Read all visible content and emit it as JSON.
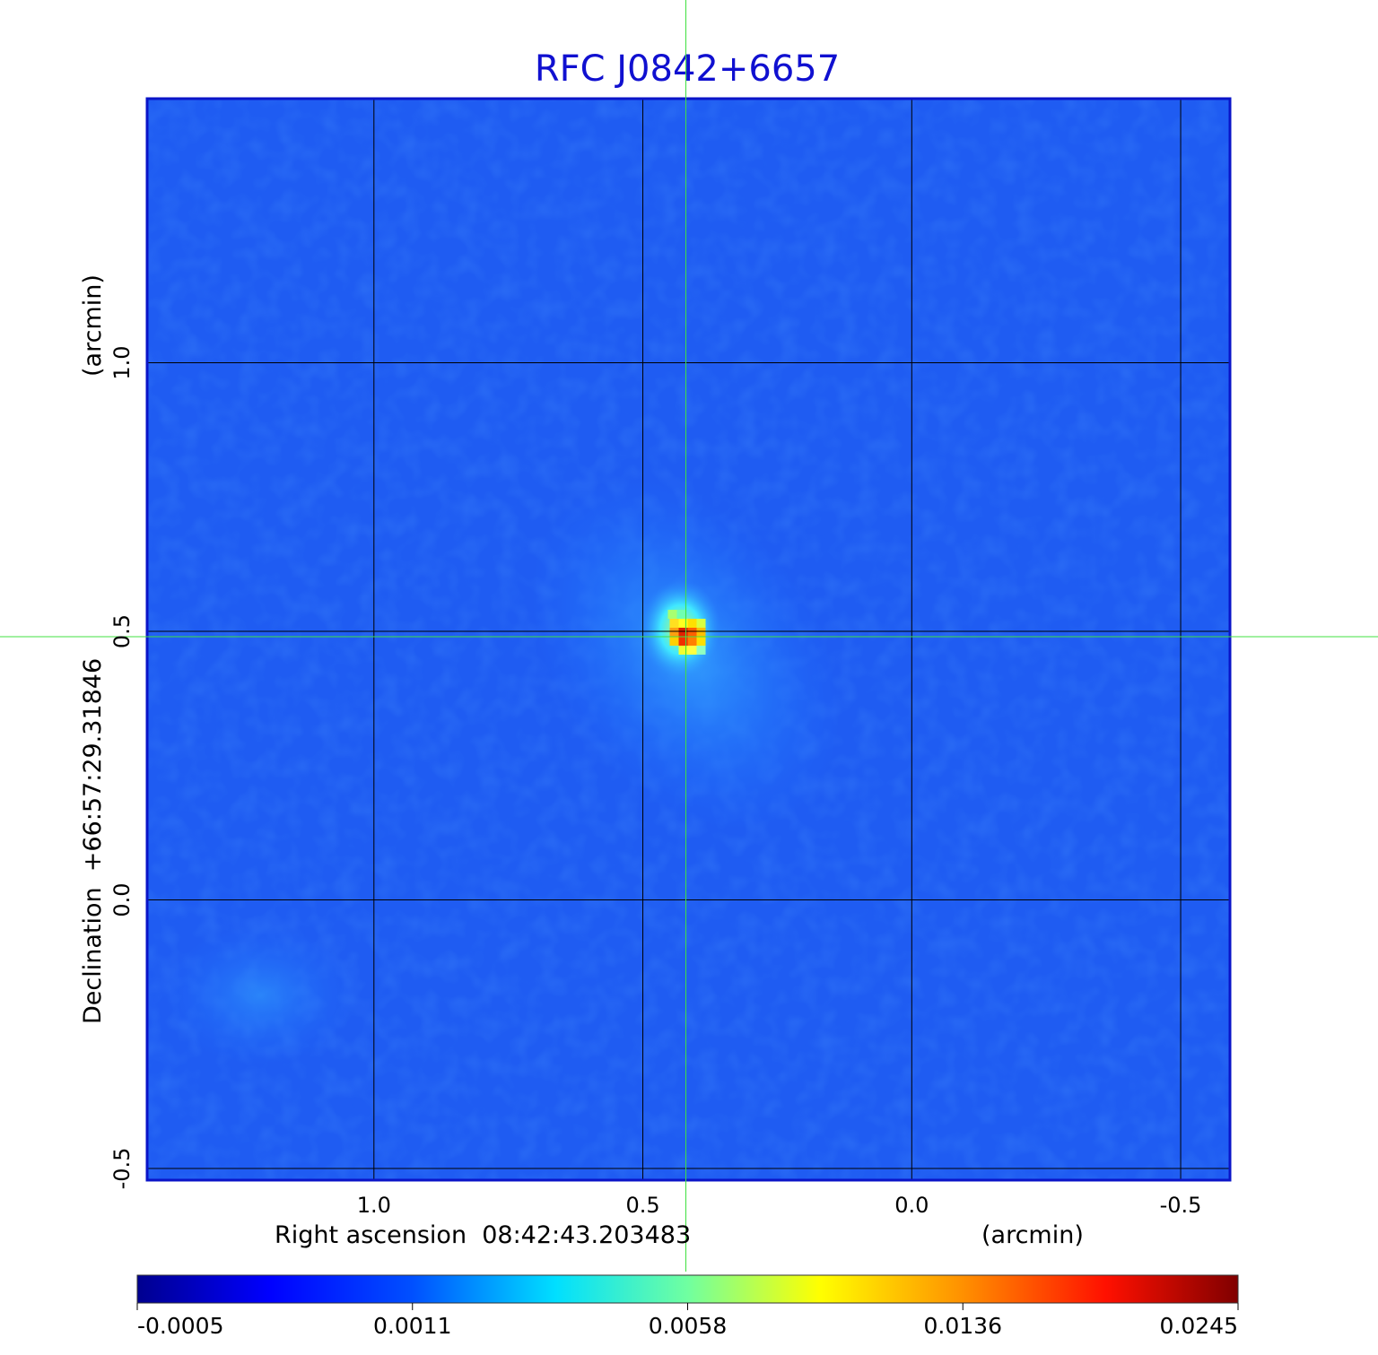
{
  "chart_data": {
    "type": "heatmap",
    "title": "RFC J0842+6657",
    "xlabel": "Right ascension  08:42:43.203483",
    "xlabel_unit": "(arcmin)",
    "ylabel": "Declination  +66:57:29.31846",
    "ylabel_unit": "(arcmin)",
    "x_ticks": [
      "1.0",
      "0.5",
      "0.0",
      "-0.5"
    ],
    "y_ticks": [
      "1.0",
      "0.5",
      "0.0",
      "-0.5"
    ],
    "x_tick_values": [
      1.0,
      0.5,
      0.0,
      -0.5
    ],
    "y_tick_values": [
      1.0,
      0.5,
      0.0,
      -0.5
    ],
    "xlim": [
      1.42,
      -0.59
    ],
    "ylim": [
      -0.52,
      1.49
    ],
    "grid": true,
    "crosshair": {
      "x": 0.42,
      "y": 0.49
    },
    "peak": {
      "x": 0.42,
      "y": 0.49,
      "value": 0.0245
    },
    "background_level": -0.0002,
    "colorbar": {
      "ticks": [
        "-0.0005",
        "0.0011",
        "0.0058",
        "0.0136",
        "0.0245"
      ],
      "colormap": "jet",
      "orientation": "horizontal",
      "placement": "bottom"
    },
    "colors": {
      "title": "#1010d0",
      "frame": "#0a14c8",
      "grid": "#000000",
      "crosshair": "#40e040"
    }
  }
}
